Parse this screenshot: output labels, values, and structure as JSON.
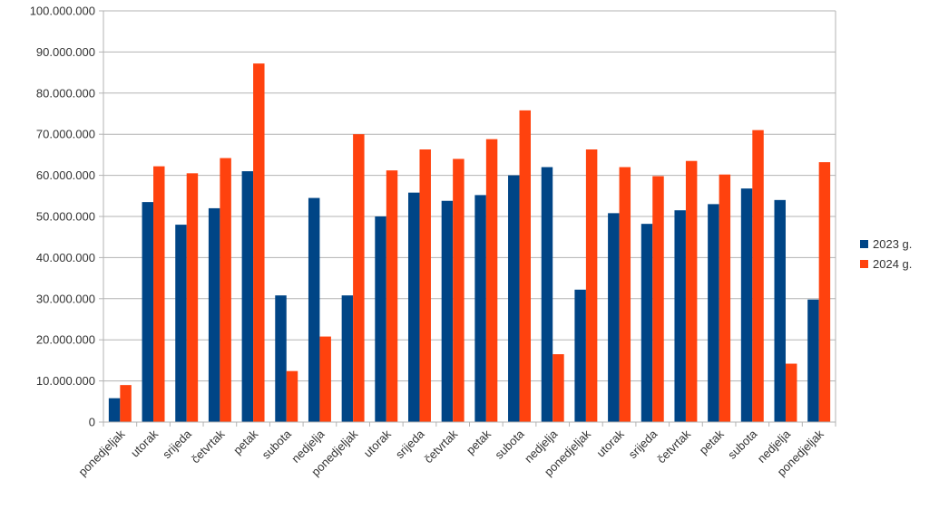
{
  "chart_data": {
    "type": "bar",
    "title": "",
    "xlabel": "",
    "ylabel": "",
    "ylim": [
      0,
      100000000
    ],
    "yticks": [
      0,
      10000000,
      20000000,
      30000000,
      40000000,
      50000000,
      60000000,
      70000000,
      80000000,
      90000000,
      100000000
    ],
    "ytick_labels": [
      "0",
      "10.000.000",
      "20.000.000",
      "30.000.000",
      "40.000.000",
      "50.000.000",
      "60.000.000",
      "70.000.000",
      "80.000.000",
      "90.000.000",
      "100.000.000"
    ],
    "grid": true,
    "legend_position": "right",
    "categories": [
      "ponedjeljak",
      "utorak",
      "srijeda",
      "četvrtak",
      "petak",
      "subota",
      "nedjelja",
      "ponedjeljak",
      "utorak",
      "srijeda",
      "četvrtak",
      "petak",
      "subota",
      "nedjelja",
      "ponedjeljak",
      "utorak",
      "srijeda",
      "četvrtak",
      "petak",
      "subota",
      "nedjelja",
      "ponedjeljak"
    ],
    "series": [
      {
        "name": "2023 g.",
        "color": "#004586",
        "values": [
          5800000,
          53500000,
          48000000,
          52000000,
          61000000,
          30800000,
          54500000,
          30800000,
          50000000,
          55800000,
          53800000,
          55200000,
          60000000,
          62000000,
          32200000,
          50800000,
          48200000,
          51500000,
          53000000,
          56800000,
          54000000,
          29800000
        ]
      },
      {
        "name": "2024 g.",
        "color": "#FF420E",
        "values": [
          9000000,
          62200000,
          60500000,
          64200000,
          87200000,
          12400000,
          20800000,
          70000000,
          61200000,
          66300000,
          64000000,
          68800000,
          75800000,
          16500000,
          66300000,
          62000000,
          59800000,
          63500000,
          60200000,
          71000000,
          14200000,
          63200000
        ]
      }
    ]
  }
}
